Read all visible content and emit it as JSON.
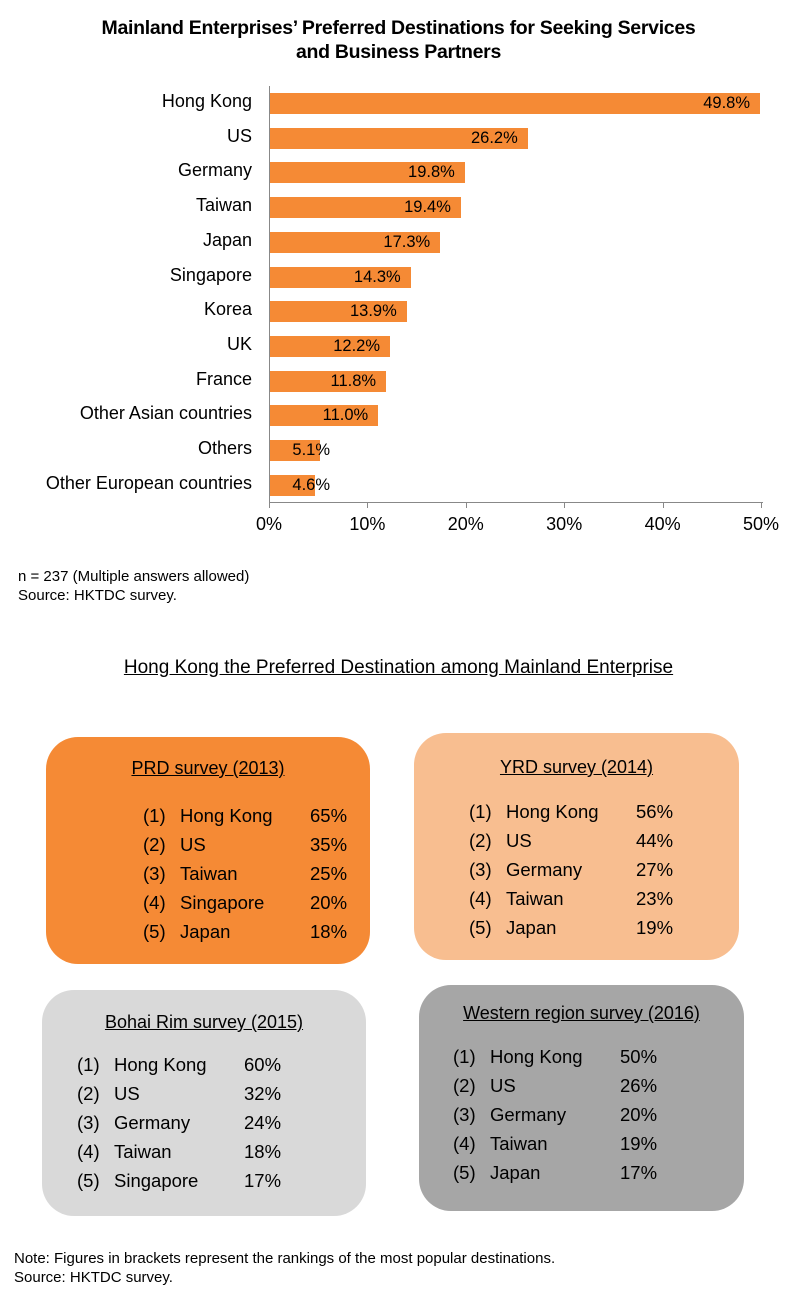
{
  "title": {
    "line1": "Mainland Enterprises’ Preferred Destinations for Seeking Services",
    "line2": "and Business Partners"
  },
  "chart_data": {
    "type": "bar",
    "orientation": "horizontal",
    "title": "Mainland Enterprises’ Preferred Destinations for Seeking Services and Business Partners",
    "categories": [
      "Hong Kong",
      "US",
      "Germany",
      "Taiwan",
      "Japan",
      "Singapore",
      "Korea",
      "UK",
      "France",
      "Other Asian countries",
      "Others",
      "Other European countries"
    ],
    "values": [
      49.8,
      26.2,
      19.8,
      19.4,
      17.3,
      14.3,
      13.9,
      12.2,
      11.8,
      11.0,
      5.1,
      4.6
    ],
    "value_labels": [
      "49.8%",
      "26.2%",
      "19.8%",
      "19.4%",
      "17.3%",
      "14.3%",
      "13.9%",
      "12.2%",
      "11.8%",
      "11.0%",
      "5.1%",
      "4.6%"
    ],
    "xlabel": "",
    "ylabel": "",
    "xlim": [
      0,
      50
    ],
    "x_ticks": [
      "0%",
      "10%",
      "20%",
      "30%",
      "40%",
      "50%"
    ],
    "grid": false,
    "legend": null,
    "bar_color": "#F58A35"
  },
  "notes": {
    "sample": "n = 237 (Multiple answers allowed)",
    "source": "Source: HKTDC survey."
  },
  "section_title": "Hong Kong the Preferred Destination among Mainland Enterprise",
  "surveys": [
    {
      "title": "PRD survey (2013)",
      "color": "#F58A35",
      "items": [
        {
          "rank": "(1)",
          "name": "Hong Kong",
          "value": "65%"
        },
        {
          "rank": "(2)",
          "name": "US",
          "value": "35%"
        },
        {
          "rank": "(3)",
          "name": "Taiwan",
          "value": "25%"
        },
        {
          "rank": "(4)",
          "name": "Singapore",
          "value": "20%"
        },
        {
          "rank": "(5)",
          "name": "Japan",
          "value": "18%"
        }
      ]
    },
    {
      "title": "YRD survey (2014)",
      "color": "#F8BE90",
      "items": [
        {
          "rank": "(1)",
          "name": "Hong Kong",
          "value": "56%"
        },
        {
          "rank": "(2)",
          "name": "US",
          "value": "44%"
        },
        {
          "rank": "(3)",
          "name": "Germany",
          "value": "27%"
        },
        {
          "rank": "(4)",
          "name": "Taiwan",
          "value": "23%"
        },
        {
          "rank": "(5)",
          "name": "Japan",
          "value": "19%"
        }
      ]
    },
    {
      "title": "Bohai Rim survey (2015)",
      "color": "#D9D9D9",
      "items": [
        {
          "rank": "(1)",
          "name": "Hong Kong",
          "value": "60%"
        },
        {
          "rank": "(2)",
          "name": "US",
          "value": "32%"
        },
        {
          "rank": "(3)",
          "name": "Germany",
          "value": "24%"
        },
        {
          "rank": "(4)",
          "name": "Taiwan",
          "value": "18%"
        },
        {
          "rank": "(5)",
          "name": "Singapore",
          "value": "17%"
        }
      ]
    },
    {
      "title": "Western region survey (2016)",
      "color": "#A6A6A6",
      "items": [
        {
          "rank": "(1)",
          "name": "Hong Kong",
          "value": "50%"
        },
        {
          "rank": "(2)",
          "name": "US",
          "value": "26%"
        },
        {
          "rank": "(3)",
          "name": "Germany",
          "value": "20%"
        },
        {
          "rank": "(4)",
          "name": "Taiwan",
          "value": "19%"
        },
        {
          "rank": "(5)",
          "name": "Japan",
          "value": "17%"
        }
      ]
    }
  ],
  "footer": {
    "note": "Note: Figures in brackets represent the rankings of the most popular destinations.",
    "source": "Source: HKTDC survey."
  }
}
